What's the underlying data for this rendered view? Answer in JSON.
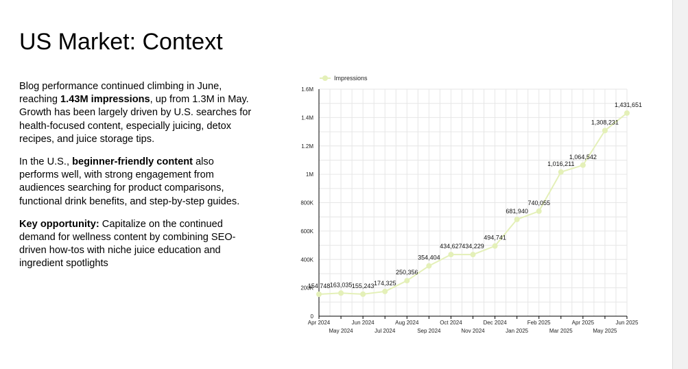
{
  "slide": {
    "title": "US Market: Context",
    "paragraph1": {
      "part1": "Blog performance continued climbing in June, reaching ",
      "bold": "1.43M impressions",
      "part2": ", up from 1.3M in May. Growth has been largely driven by U.S. searches for health-focused content, especially juicing, detox recipes, and juice storage tips."
    },
    "paragraph2": {
      "part1": "In the U.S., ",
      "bold": "beginner-friendly content",
      "part2": " also performs well, with strong engagement from audiences searching for product comparisons, functional drink benefits, and step-by-step guides."
    },
    "paragraph3": {
      "bold": "Key opportunity:",
      "part2": " Capitalize on the continued demand for wellness content by combining SEO-driven how-tos with niche juice education and ingredient spotlights"
    }
  },
  "colors": {
    "series": "#e4f0b8",
    "grid": "#e6e6e6",
    "axis": "#000000"
  },
  "chart_data": {
    "type": "line",
    "x": [
      "Apr 2024",
      "May 2024",
      "Jun 2024",
      "Jul 2024",
      "Aug 2024",
      "Sep 2024",
      "Oct 2024",
      "Nov 2024",
      "Dec 2024",
      "Jan 2025",
      "Feb 2025",
      "Mar 2025",
      "Apr 2025",
      "May 2025",
      "Jun 2025"
    ],
    "series": [
      {
        "name": "Impressions",
        "values": [
          154748,
          163035,
          155243,
          174325,
          250356,
          354404,
          434627,
          434229,
          494741,
          681940,
          740055,
          1016211,
          1064542,
          1308231,
          1431651
        ],
        "labels": [
          "154,748",
          "163,035",
          "155,243",
          "174,325",
          "250,356",
          "354,404",
          "434,627",
          "434,229",
          "494,741",
          "681,940",
          "740,055",
          "1,016,211",
          "1,064,542",
          "1,308,231",
          "1,431,651"
        ]
      }
    ],
    "y_ticks": [
      0,
      200000,
      400000,
      600000,
      800000,
      1000000,
      1200000,
      1400000,
      1600000
    ],
    "y_tick_labels": [
      "0",
      "200K",
      "400K",
      "600K",
      "800K",
      "1M",
      "1.2M",
      "1.4M",
      "1.6M"
    ],
    "ylim": [
      0,
      1600000
    ],
    "grid": true,
    "legend_position": "top-left",
    "xlabel": "",
    "ylabel": ""
  }
}
